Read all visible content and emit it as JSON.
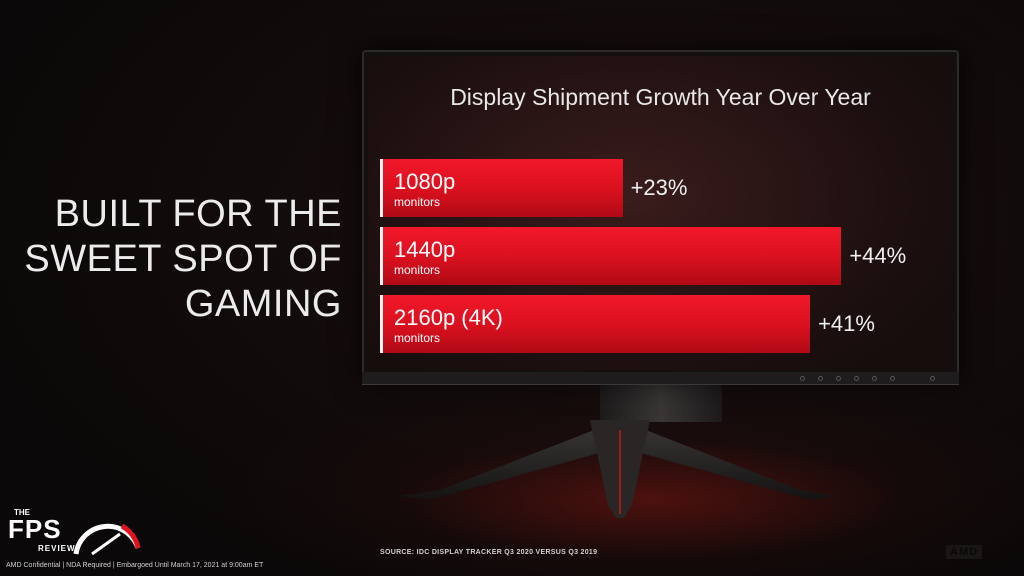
{
  "headline": [
    "BUILT FOR THE",
    "SWEET SPOT OF",
    "GAMING"
  ],
  "chart_data": {
    "type": "bar",
    "orientation": "horizontal",
    "title": "Display Shipment Growth Year Over Year",
    "categories": [
      "1080p",
      "1440p",
      "2160p (4K)"
    ],
    "sublabels": [
      "monitors",
      "monitors",
      "monitors"
    ],
    "values": [
      23,
      44,
      41
    ],
    "value_labels": [
      "+23%",
      "+44%",
      "+41%"
    ],
    "unit": "%",
    "xlim": [
      0,
      48
    ],
    "grid": false,
    "legend": "none",
    "bar_color": "#e0141f"
  },
  "footer": {
    "source": "SOURCE: IDC DISPLAY TRACKER Q3 2020 VERSUS Q3 2019",
    "confidential": "AMD Confidential | NDA Required | Embargoed Until March 17, 2021 at 9:00am ET"
  },
  "logo": {
    "the": "THE",
    "fps": "FPS",
    "review": "REVIEW",
    "icon": "speedometer-gauge-icon"
  },
  "brand": "AMD"
}
